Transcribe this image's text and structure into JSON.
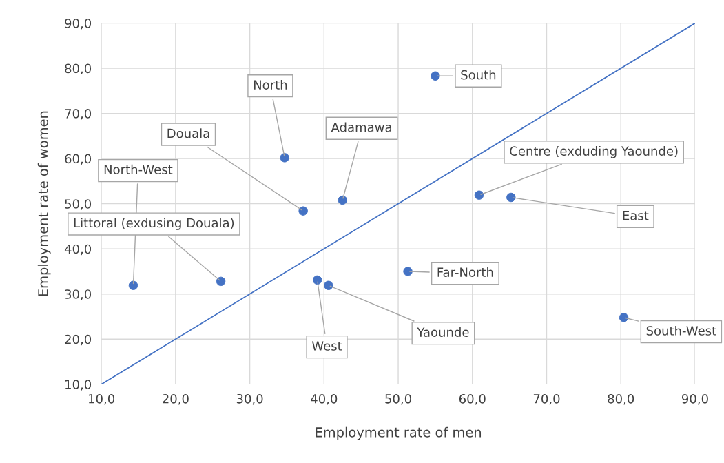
{
  "chart_data": {
    "type": "scatter",
    "xlabel": "Employment rate of men",
    "ylabel": "Employment rate of women",
    "xlim": [
      10,
      90
    ],
    "ylim": [
      10,
      90
    ],
    "xticks": [
      {
        "value": 10,
        "label": "10,0"
      },
      {
        "value": 20,
        "label": "20,0"
      },
      {
        "value": 30,
        "label": "30,0"
      },
      {
        "value": 40,
        "label": "40,0"
      },
      {
        "value": 50,
        "label": "50,0"
      },
      {
        "value": 60,
        "label": "60,0"
      },
      {
        "value": 70,
        "label": "70,0"
      },
      {
        "value": 80,
        "label": "80,0"
      },
      {
        "value": 90,
        "label": "90,0"
      }
    ],
    "yticks": [
      {
        "value": 10,
        "label": "10,0"
      },
      {
        "value": 20,
        "label": "20,0"
      },
      {
        "value": 30,
        "label": "30,0"
      },
      {
        "value": 40,
        "label": "40,0"
      },
      {
        "value": 50,
        "label": "50,0"
      },
      {
        "value": 60,
        "label": "60,0"
      },
      {
        "value": 70,
        "label": "70,0"
      },
      {
        "value": 80,
        "label": "80,0"
      },
      {
        "value": 90,
        "label": "90,0"
      }
    ],
    "grid": true,
    "legend": false,
    "series": [
      {
        "color": "#4472c4",
        "marker": "circle",
        "x": [
          14.3,
          26.1,
          37.2,
          34.7,
          42.5,
          55.0,
          39.1,
          40.6,
          51.3,
          60.9,
          65.2,
          80.4
        ],
        "values": [
          31.9,
          32.8,
          48.4,
          60.2,
          50.8,
          78.3,
          33.1,
          31.9,
          35.0,
          51.9,
          51.4,
          24.8
        ]
      },
      {
        "type": "line",
        "color": "#4472c4",
        "marker": "none",
        "line_style": "solid",
        "x": [
          10,
          90
        ],
        "values": [
          10,
          90
        ]
      }
    ],
    "annotations": [
      {
        "text": "North-West",
        "x": 14.3,
        "y": 31.9
      },
      {
        "text": "Littoral (exdusing Douala)",
        "x": 26.1,
        "y": 32.8
      },
      {
        "text": "Douala",
        "x": 37.2,
        "y": 48.4
      },
      {
        "text": "North",
        "x": 34.7,
        "y": 60.2
      },
      {
        "text": "Adamawa",
        "x": 42.5,
        "y": 50.8
      },
      {
        "text": "South",
        "x": 55.0,
        "y": 78.3
      },
      {
        "text": "West",
        "x": 39.1,
        "y": 33.1
      },
      {
        "text": "Yaounde",
        "x": 40.6,
        "y": 31.9
      },
      {
        "text": "Far-North",
        "x": 51.3,
        "y": 35.0
      },
      {
        "text": "Centre (exduding Yaounde)",
        "x": 60.9,
        "y": 51.9
      },
      {
        "text": "East",
        "x": 65.2,
        "y": 51.4
      },
      {
        "text": "South-West",
        "x": 80.4,
        "y": 24.8
      }
    ]
  }
}
